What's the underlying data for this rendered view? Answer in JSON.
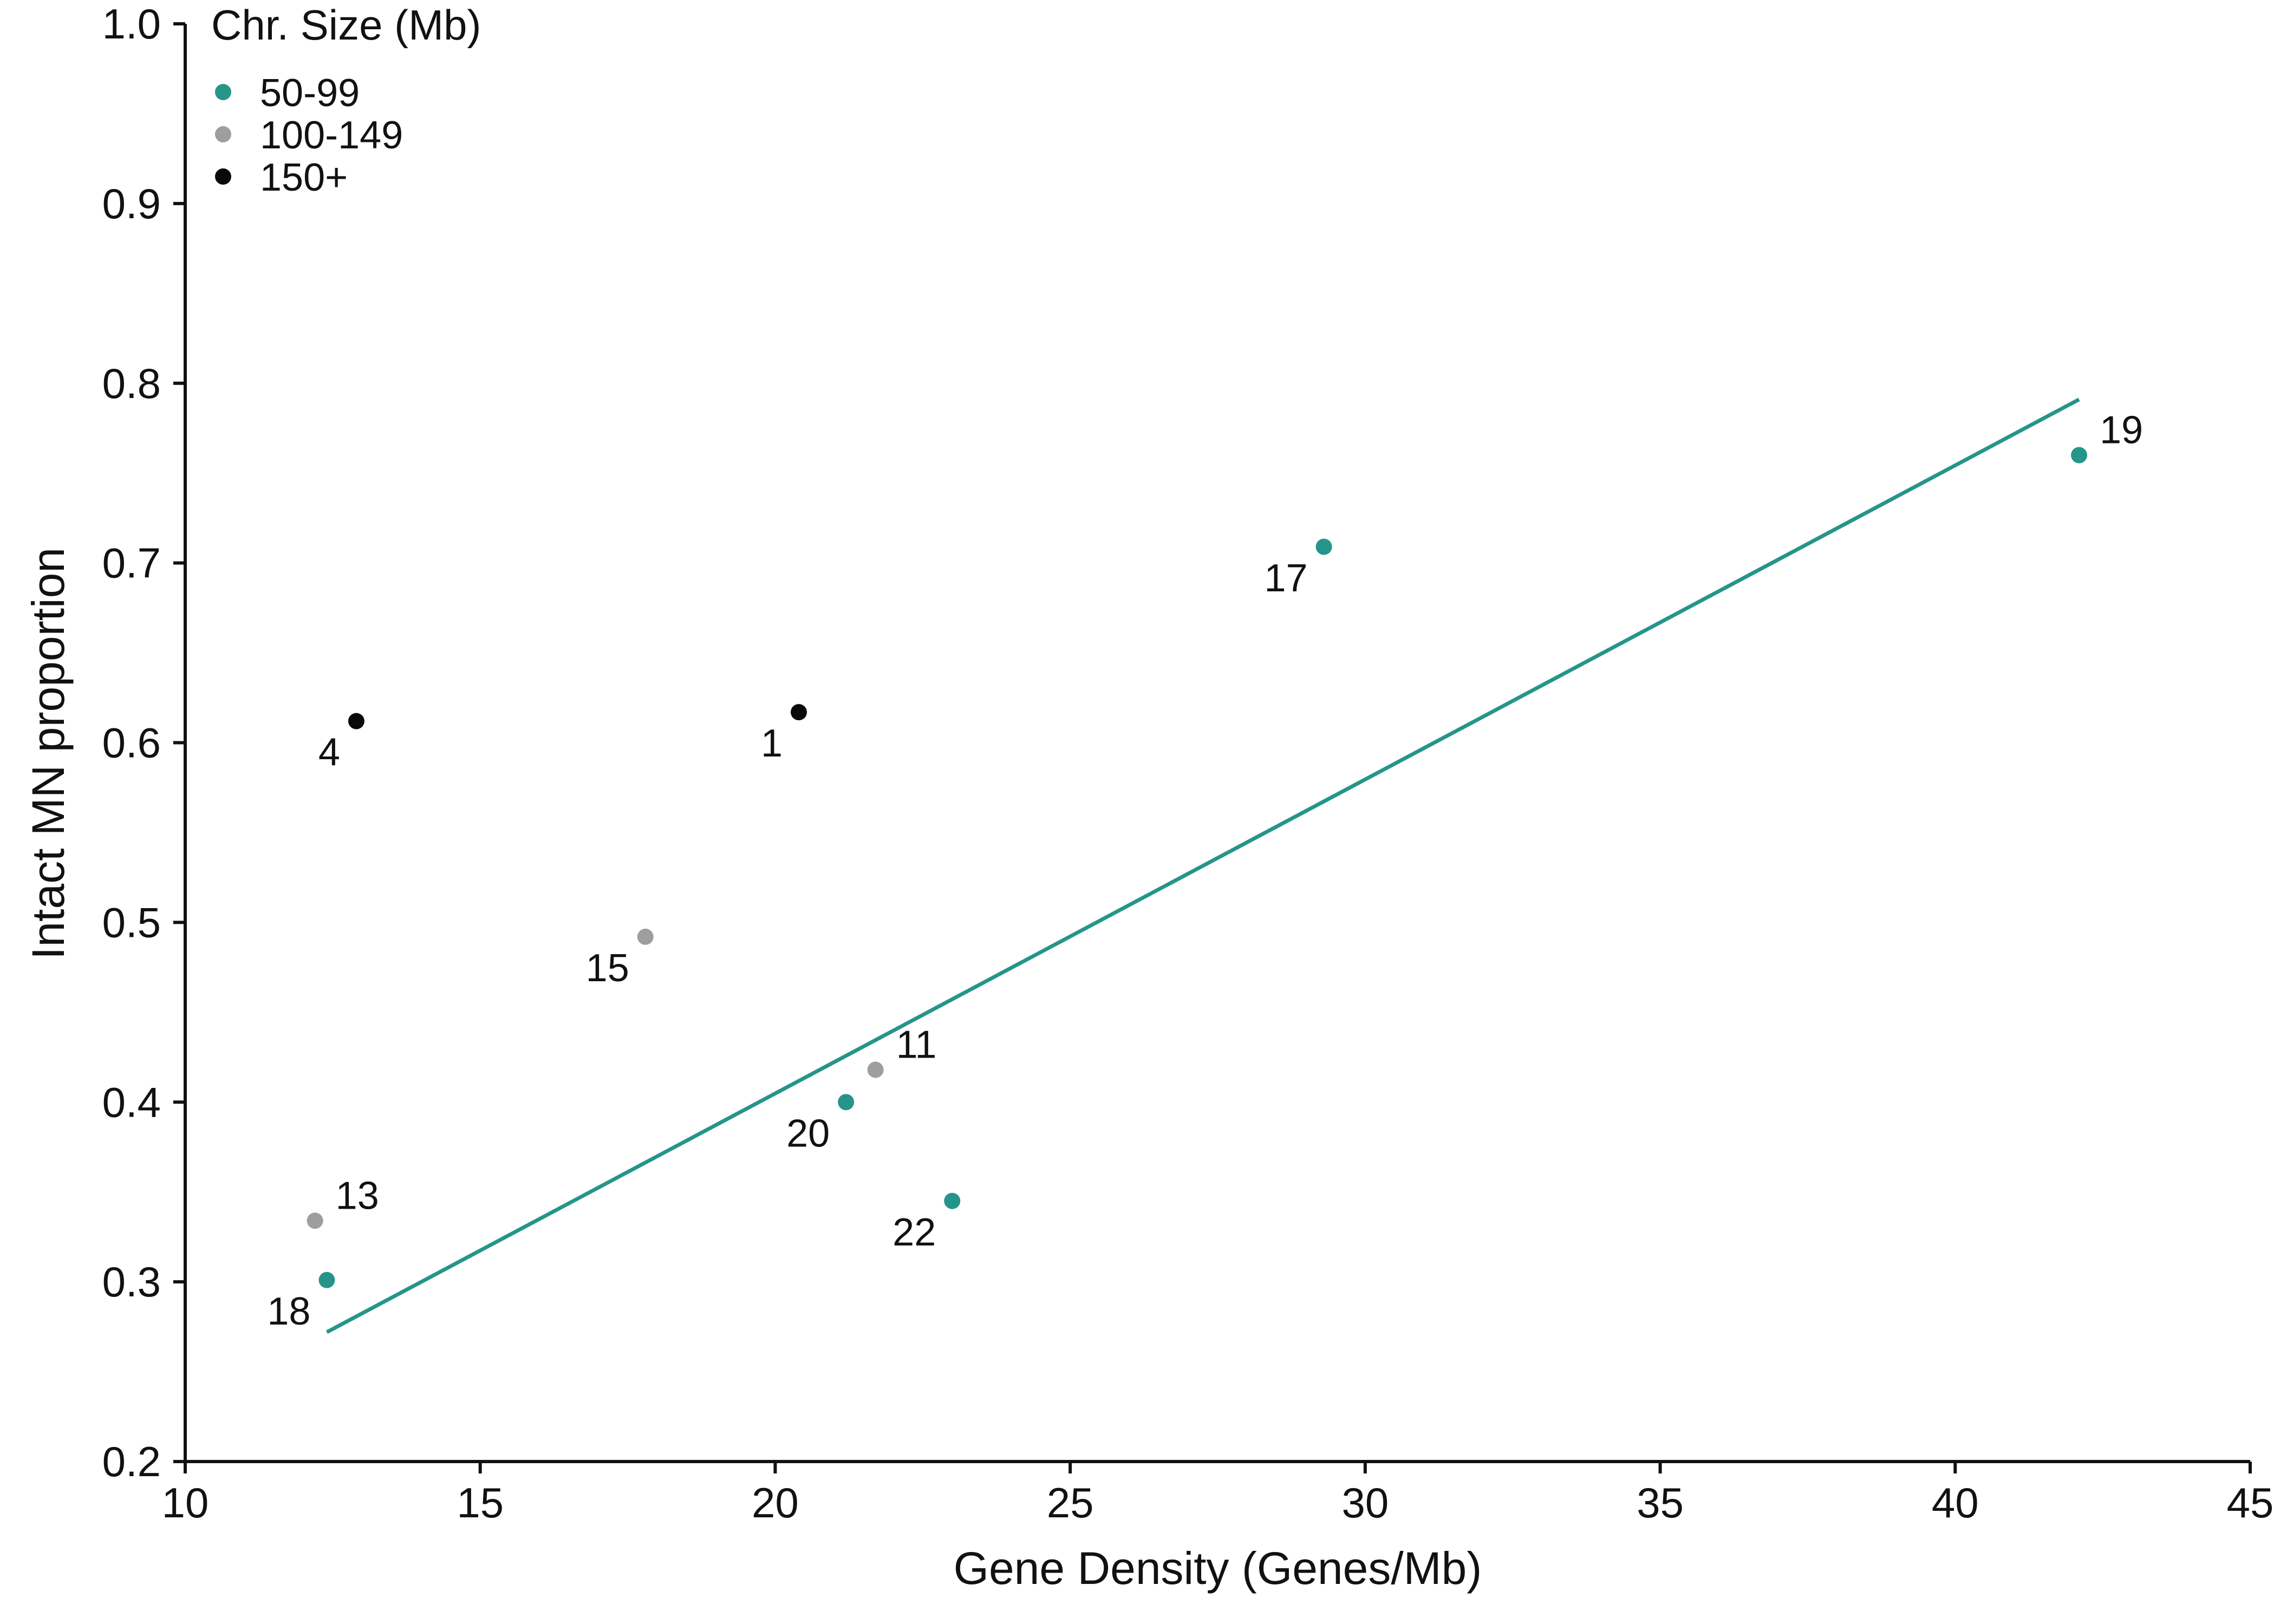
{
  "chart_data": {
    "type": "scatter",
    "title": "",
    "xlabel": "Gene Density (Genes/Mb)",
    "ylabel": "Intact MN proportion",
    "xlim": [
      10,
      45
    ],
    "ylim": [
      0.2,
      1.0
    ],
    "x_ticks": [
      "10",
      "15",
      "20",
      "25",
      "30",
      "35",
      "40",
      "45"
    ],
    "y_ticks": [
      "0.2",
      "0.3",
      "0.4",
      "0.5",
      "0.6",
      "0.7",
      "0.8",
      "0.9",
      "1.0"
    ],
    "grid": false,
    "legend": {
      "title": "Chr. Size (Mb)",
      "position": "top-left",
      "entries": [
        {
          "label": "50-99",
          "color": "#25958a"
        },
        {
          "label": "100-149",
          "color": "#9e9e9e"
        },
        {
          "label": "150+",
          "color": "#0a0a0a"
        }
      ]
    },
    "points": [
      {
        "label": "1",
        "x": 20.4,
        "y": 0.617,
        "group": "150+",
        "label_side": "left"
      },
      {
        "label": "4",
        "x": 12.9,
        "y": 0.612,
        "group": "150+",
        "label_side": "left"
      },
      {
        "label": "11",
        "x": 21.7,
        "y": 0.418,
        "group": "100-149",
        "label_side": "right"
      },
      {
        "label": "13",
        "x": 12.2,
        "y": 0.334,
        "group": "100-149",
        "label_side": "right"
      },
      {
        "label": "15",
        "x": 17.8,
        "y": 0.492,
        "group": "100-149",
        "label_side": "left"
      },
      {
        "label": "17",
        "x": 29.3,
        "y": 0.709,
        "group": "50-99",
        "label_side": "left"
      },
      {
        "label": "18",
        "x": 12.4,
        "y": 0.301,
        "group": "50-99",
        "label_side": "left"
      },
      {
        "label": "19",
        "x": 42.1,
        "y": 0.76,
        "group": "50-99",
        "label_side": "right"
      },
      {
        "label": "20",
        "x": 21.2,
        "y": 0.4,
        "group": "50-99",
        "label_side": "left"
      },
      {
        "label": "22",
        "x": 23.0,
        "y": 0.345,
        "group": "50-99",
        "label_side": "left"
      }
    ],
    "trend_line": {
      "color": "#25958a",
      "x": [
        12.4,
        42.1
      ],
      "y": [
        0.272,
        0.791
      ]
    }
  }
}
